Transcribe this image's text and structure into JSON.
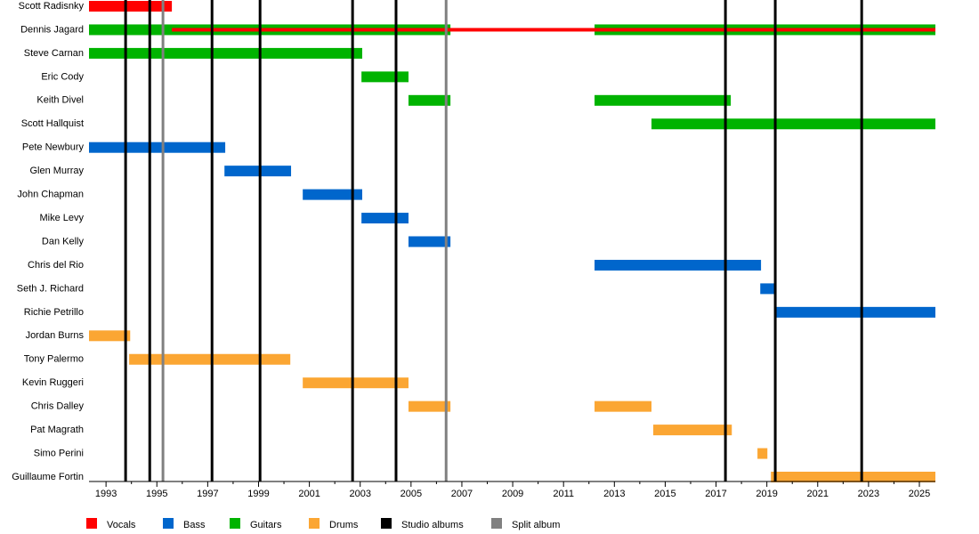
{
  "chart_data": {
    "type": "timeline",
    "categories": [
      "Scott Radisnky",
      "Dennis Jagard",
      "Steve Carnan",
      "Eric Cody",
      "Keith Divel",
      "Scott Hallquist",
      "Pete Newbury",
      "Glen Murray",
      "John Chapman",
      "Mike Levy",
      "Dan Kelly",
      "Chris del Rio",
      "Seth J. Richard",
      "Richie Petrillo",
      "Jordan Burns",
      "Tony Palermo",
      "Kevin Ruggeri",
      "Chris Dalley",
      "Pat Magrath",
      "Simo Perini",
      "Guillaume Fortin"
    ],
    "xlim": [
      1992.33,
      2025.63
    ],
    "xticks": [
      1993,
      1995,
      1997,
      1999,
      2001,
      2003,
      2005,
      2007,
      2009,
      2011,
      2013,
      2015,
      2017,
      2019,
      2021,
      2023,
      2025
    ],
    "xminorticks": [
      1994,
      1996,
      1998,
      2000,
      2002,
      2004,
      2006,
      2008,
      2010,
      2012,
      2014,
      2016,
      2018,
      2020,
      2022,
      2024
    ],
    "series": [
      {
        "name": "Vocals",
        "color": "#ff0000",
        "values": [
          [
            [
              1992.33,
              1995.59
            ]
          ],
          [
            [
              1995.59,
              2025.63
            ]
          ],
          null,
          null,
          null,
          null,
          null,
          null,
          null,
          null,
          null,
          null,
          null,
          null,
          null,
          null,
          null,
          null,
          null,
          null,
          null
        ]
      },
      {
        "name": "Bass",
        "color": "#0066cc",
        "values": [
          null,
          null,
          null,
          null,
          null,
          null,
          [
            [
              1992.33,
              1997.69
            ]
          ],
          [
            [
              1997.66,
              2000.28
            ]
          ],
          [
            [
              2000.74,
              2003.08
            ]
          ],
          [
            [
              2003.05,
              2004.9
            ]
          ],
          [
            [
              2004.9,
              2006.55
            ]
          ],
          [
            [
              2012.22,
              2018.77
            ]
          ],
          [
            [
              2018.74,
              2019.33
            ]
          ],
          [
            [
              2019.33,
              2025.63
            ]
          ],
          null,
          null,
          null,
          null,
          null,
          null,
          null
        ]
      },
      {
        "name": "Guitars",
        "color": "#00b300",
        "values": [
          null,
          [
            [
              1992.33,
              2006.55
            ],
            [
              2012.22,
              2025.63
            ]
          ],
          [
            [
              1992.33,
              2003.08
            ]
          ],
          [
            [
              2003.05,
              2004.9
            ]
          ],
          [
            [
              2004.9,
              2006.55
            ],
            [
              2012.22,
              2017.58
            ]
          ],
          [
            [
              2014.46,
              2025.63
            ]
          ],
          null,
          null,
          null,
          null,
          null,
          null,
          null,
          null,
          null,
          null,
          null,
          null,
          null,
          null,
          null
        ]
      },
      {
        "name": "Drums",
        "color": "#fba633",
        "values": [
          null,
          null,
          null,
          null,
          null,
          null,
          null,
          null,
          null,
          null,
          null,
          null,
          null,
          null,
          [
            [
              1992.33,
              1993.95
            ]
          ],
          [
            [
              1993.91,
              2000.25
            ]
          ],
          [
            [
              2000.74,
              2004.9
            ]
          ],
          [
            [
              2004.9,
              2006.55
            ],
            [
              2012.22,
              2014.46
            ]
          ],
          [
            [
              2014.53,
              2017.62
            ]
          ],
          [
            [
              2018.63,
              2019.02
            ]
          ],
          [
            [
              2019.16,
              2025.63
            ]
          ]
        ]
      },
      {
        "name": "Studio albums",
        "color": "#000000",
        "x": [
          1993.77,
          1994.72,
          1997.17,
          1999.06,
          2002.7,
          2004.41,
          2017.37,
          2019.33,
          2022.73
        ]
      },
      {
        "name": "Split album",
        "color": "#808080",
        "x": [
          1995.24,
          2006.38
        ]
      }
    ]
  }
}
